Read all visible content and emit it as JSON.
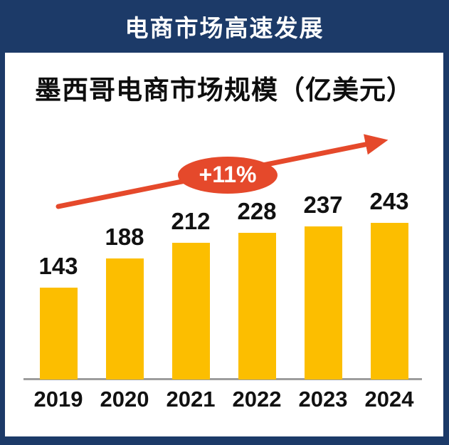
{
  "banner": {
    "title": "电商市场高速发展"
  },
  "chart_data": {
    "type": "bar",
    "title": "墨西哥电商市场规模（亿美元）",
    "categories": [
      "2019",
      "2020",
      "2021",
      "2022",
      "2023",
      "2024"
    ],
    "values": [
      143,
      188,
      212,
      228,
      237,
      243
    ],
    "annotation": "+11%",
    "xlabel": "",
    "ylabel": "",
    "value_labels_shown": true,
    "gridlines": false,
    "legend": "none",
    "bar_color": "#fcbe00",
    "trend_arrow_color": "#e5492b",
    "label_color": "#111111"
  },
  "colors": {
    "frame_navy": "#1c3a68",
    "card_white": "#ffffff",
    "axis_gray": "#9e9e9e",
    "banner_text": "#ffffff"
  }
}
